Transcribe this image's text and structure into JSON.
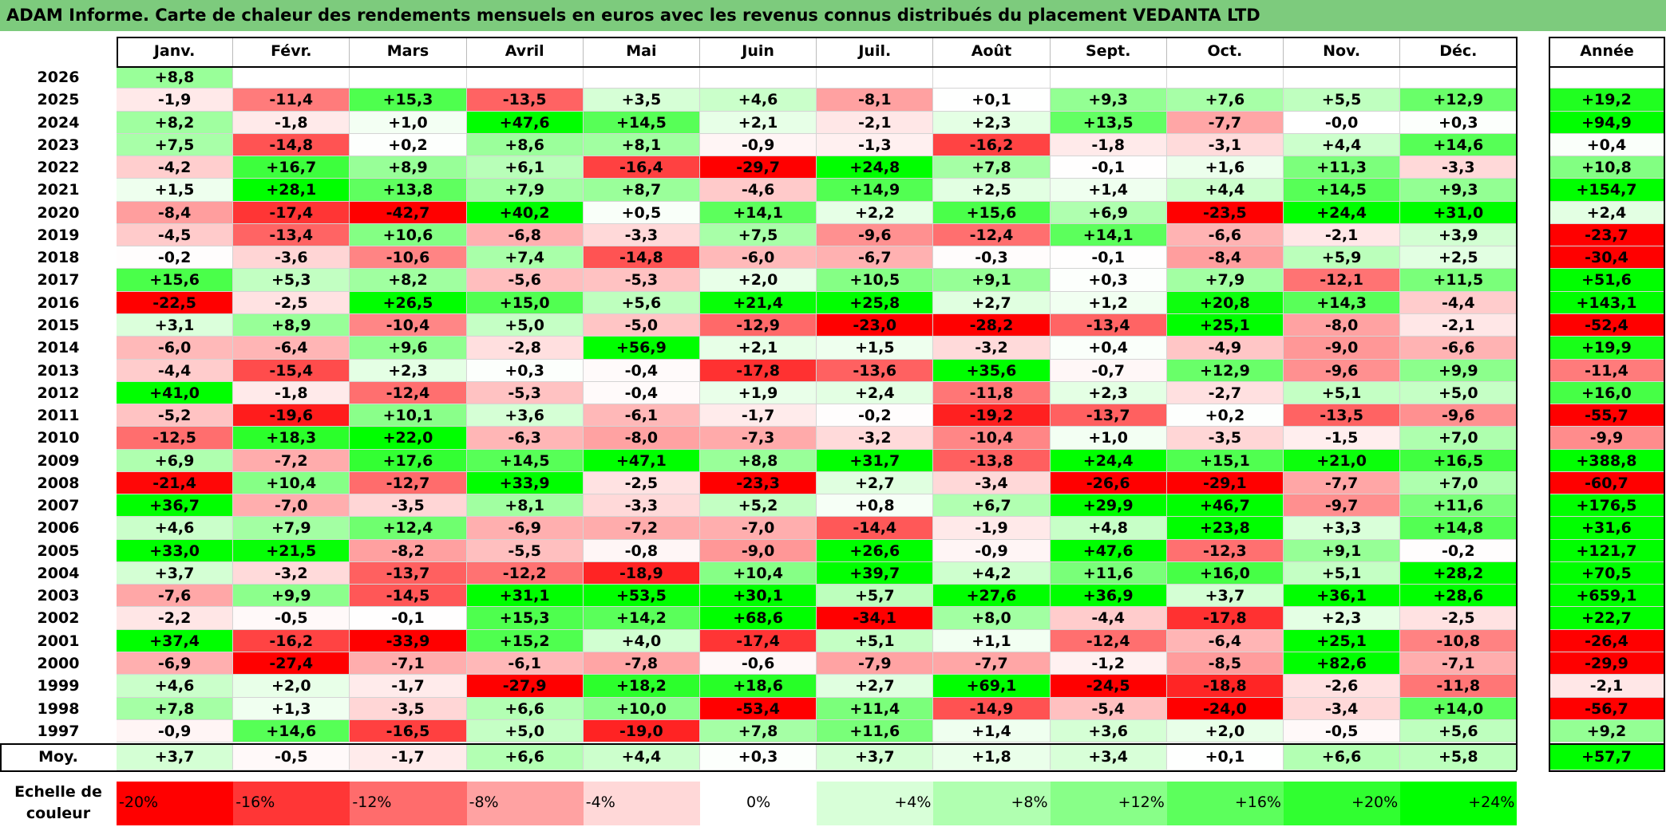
{
  "title": "ADAM Informe. Carte de chaleur des rendements mensuels en euros avec les revenus connus distribués du placement VEDANTA LTD",
  "chart_data": {
    "type": "heatmap",
    "title": "ADAM Informe. Carte de chaleur des rendements mensuels en euros avec les revenus connus distribués du placement VEDANTA LTD",
    "columns": [
      "Janv.",
      "Févr.",
      "Mars",
      "Avril",
      "Mai",
      "Juin",
      "Juil.",
      "Août",
      "Sept.",
      "Oct.",
      "Nov.",
      "Déc."
    ],
    "annual_header": "Année",
    "rows": [
      {
        "year": "2026",
        "values": [
          "+8,8",
          null,
          null,
          null,
          null,
          null,
          null,
          null,
          null,
          null,
          null,
          null
        ],
        "annual": ""
      },
      {
        "year": "2025",
        "values": [
          "-1,9",
          "-11,4",
          "+15,3",
          "-13,5",
          "+3,5",
          "+4,6",
          "-8,1",
          "+0,1",
          "+9,3",
          "+7,6",
          "+5,5",
          "+12,9"
        ],
        "annual": "+19,2"
      },
      {
        "year": "2024",
        "values": [
          "+8,2",
          "-1,8",
          "+1,0",
          "+47,6",
          "+14,5",
          "+2,1",
          "-2,1",
          "+2,3",
          "+13,5",
          "-7,7",
          "-0,0",
          "+0,3"
        ],
        "annual": "+94,9"
      },
      {
        "year": "2023",
        "values": [
          "+7,5",
          "-14,8",
          "+0,2",
          "+8,6",
          "+8,1",
          "-0,9",
          "-1,3",
          "-16,2",
          "-1,8",
          "-3,1",
          "+4,4",
          "+14,6"
        ],
        "annual": "+0,4"
      },
      {
        "year": "2022",
        "values": [
          "-4,2",
          "+16,7",
          "+8,9",
          "+6,1",
          "-16,4",
          "-29,7",
          "+24,8",
          "+7,8",
          "-0,1",
          "+1,6",
          "+11,3",
          "-3,3"
        ],
        "annual": "+10,8"
      },
      {
        "year": "2021",
        "values": [
          "+1,5",
          "+28,1",
          "+13,8",
          "+7,9",
          "+8,7",
          "-4,6",
          "+14,9",
          "+2,5",
          "+1,4",
          "+4,4",
          "+14,5",
          "+9,3"
        ],
        "annual": "+154,7"
      },
      {
        "year": "2020",
        "values": [
          "-8,4",
          "-17,4",
          "-42,7",
          "+40,2",
          "+0,5",
          "+14,1",
          "+2,2",
          "+15,6",
          "+6,9",
          "-23,5",
          "+24,4",
          "+31,0"
        ],
        "annual": "+2,4"
      },
      {
        "year": "2019",
        "values": [
          "-4,5",
          "-13,4",
          "+10,6",
          "-6,8",
          "-3,3",
          "+7,5",
          "-9,6",
          "-12,4",
          "+14,1",
          "-6,6",
          "-2,1",
          "+3,9"
        ],
        "annual": "-23,7"
      },
      {
        "year": "2018",
        "values": [
          "-0,2",
          "-3,6",
          "-10,6",
          "+7,4",
          "-14,8",
          "-6,0",
          "-6,7",
          "-0,3",
          "-0,1",
          "-8,4",
          "+5,9",
          "+2,5"
        ],
        "annual": "-30,4"
      },
      {
        "year": "2017",
        "values": [
          "+15,6",
          "+5,3",
          "+8,2",
          "-5,6",
          "-5,3",
          "+2,0",
          "+10,5",
          "+9,1",
          "+0,3",
          "+7,9",
          "-12,1",
          "+11,5"
        ],
        "annual": "+51,6"
      },
      {
        "year": "2016",
        "values": [
          "-22,5",
          "-2,5",
          "+26,5",
          "+15,0",
          "+5,6",
          "+21,4",
          "+25,8",
          "+2,7",
          "+1,2",
          "+20,8",
          "+14,3",
          "-4,4"
        ],
        "annual": "+143,1"
      },
      {
        "year": "2015",
        "values": [
          "+3,1",
          "+8,9",
          "-10,4",
          "+5,0",
          "-5,0",
          "-12,9",
          "-23,0",
          "-28,2",
          "-13,4",
          "+25,1",
          "-8,0",
          "-2,1"
        ],
        "annual": "-52,4"
      },
      {
        "year": "2014",
        "values": [
          "-6,0",
          "-6,4",
          "+9,6",
          "-2,8",
          "+56,9",
          "+2,1",
          "+1,5",
          "-3,2",
          "+0,4",
          "-4,9",
          "-9,0",
          "-6,6"
        ],
        "annual": "+19,9"
      },
      {
        "year": "2013",
        "values": [
          "-4,4",
          "-15,4",
          "+2,3",
          "+0,3",
          "-0,4",
          "-17,8",
          "-13,6",
          "+35,6",
          "-0,7",
          "+12,9",
          "-9,6",
          "+9,9"
        ],
        "annual": "-11,4"
      },
      {
        "year": "2012",
        "values": [
          "+41,0",
          "-1,8",
          "-12,4",
          "-5,3",
          "-0,4",
          "+1,9",
          "+2,4",
          "-11,8",
          "+2,3",
          "-2,7",
          "+5,1",
          "+5,0"
        ],
        "annual": "+16,0"
      },
      {
        "year": "2011",
        "values": [
          "-5,2",
          "-19,6",
          "+10,1",
          "+3,6",
          "-6,1",
          "-1,7",
          "-0,2",
          "-19,2",
          "-13,7",
          "+0,2",
          "-13,5",
          "-9,6"
        ],
        "annual": "-55,7"
      },
      {
        "year": "2010",
        "values": [
          "-12,5",
          "+18,3",
          "+22,0",
          "-6,3",
          "-8,0",
          "-7,3",
          "-3,2",
          "-10,4",
          "+1,0",
          "-3,5",
          "-1,5",
          "+7,0"
        ],
        "annual": "-9,9"
      },
      {
        "year": "2009",
        "values": [
          "+6,9",
          "-7,2",
          "+17,6",
          "+14,5",
          "+47,1",
          "+8,8",
          "+31,7",
          "-13,8",
          "+24,4",
          "+15,1",
          "+21,0",
          "+16,5"
        ],
        "annual": "+388,8"
      },
      {
        "year": "2008",
        "values": [
          "-21,4",
          "+10,4",
          "-12,7",
          "+33,9",
          "-2,5",
          "-23,3",
          "+2,7",
          "-3,4",
          "-26,6",
          "-29,1",
          "-7,7",
          "+7,0"
        ],
        "annual": "-60,7"
      },
      {
        "year": "2007",
        "values": [
          "+36,7",
          "-7,0",
          "-3,5",
          "+8,1",
          "-3,3",
          "+5,2",
          "+0,8",
          "+6,7",
          "+29,9",
          "+46,7",
          "-9,7",
          "+11,6"
        ],
        "annual": "+176,5"
      },
      {
        "year": "2006",
        "values": [
          "+4,6",
          "+7,9",
          "+12,4",
          "-6,9",
          "-7,2",
          "-7,0",
          "-14,4",
          "-1,9",
          "+4,8",
          "+23,8",
          "+3,3",
          "+14,8"
        ],
        "annual": "+31,6"
      },
      {
        "year": "2005",
        "values": [
          "+33,0",
          "+21,5",
          "-8,2",
          "-5,5",
          "-0,8",
          "-9,0",
          "+26,6",
          "-0,9",
          "+47,6",
          "-12,3",
          "+9,1",
          "-0,2"
        ],
        "annual": "+121,7"
      },
      {
        "year": "2004",
        "values": [
          "+3,7",
          "-3,2",
          "-13,7",
          "-12,2",
          "-18,9",
          "+10,4",
          "+39,7",
          "+4,2",
          "+11,6",
          "+16,0",
          "+5,1",
          "+28,2"
        ],
        "annual": "+70,5"
      },
      {
        "year": "2003",
        "values": [
          "-7,6",
          "+9,9",
          "-14,5",
          "+31,1",
          "+53,5",
          "+30,1",
          "+5,7",
          "+27,6",
          "+36,9",
          "+3,7",
          "+36,1",
          "+28,6"
        ],
        "annual": "+659,1"
      },
      {
        "year": "2002",
        "values": [
          "-2,2",
          "-0,5",
          "-0,1",
          "+15,3",
          "+14,2",
          "+68,6",
          "-34,1",
          "+8,0",
          "-4,4",
          "-17,8",
          "+2,3",
          "-2,5"
        ],
        "annual": "+22,7"
      },
      {
        "year": "2001",
        "values": [
          "+37,4",
          "-16,2",
          "-33,9",
          "+15,2",
          "+4,0",
          "-17,4",
          "+5,1",
          "+1,1",
          "-12,4",
          "-6,4",
          "+25,1",
          "-10,8"
        ],
        "annual": "-26,4"
      },
      {
        "year": "2000",
        "values": [
          "-6,9",
          "-27,4",
          "-7,1",
          "-6,1",
          "-7,8",
          "-0,6",
          "-7,9",
          "-7,7",
          "-1,2",
          "-8,5",
          "+82,6",
          "-7,1"
        ],
        "annual": "-29,9"
      },
      {
        "year": "1999",
        "values": [
          "+4,6",
          "+2,0",
          "-1,7",
          "-27,9",
          "+18,2",
          "+18,6",
          "+2,7",
          "+69,1",
          "-24,5",
          "-18,8",
          "-2,6",
          "-11,8"
        ],
        "annual": "-2,1"
      },
      {
        "year": "1998",
        "values": [
          "+7,8",
          "+1,3",
          "-3,5",
          "+6,6",
          "+10,0",
          "-53,4",
          "+11,4",
          "-14,9",
          "-5,4",
          "-24,0",
          "-3,4",
          "+14,0"
        ],
        "annual": "-56,7"
      },
      {
        "year": "1997",
        "values": [
          "-0,9",
          "+14,6",
          "-16,5",
          "+5,0",
          "-19,0",
          "+7,8",
          "+11,6",
          "+1,4",
          "+3,6",
          "+2,0",
          "-0,5",
          "+5,6"
        ],
        "annual": "+9,2"
      }
    ],
    "average": {
      "label": "Moy.",
      "values": [
        "+3,7",
        "-0,5",
        "-1,7",
        "+6,6",
        "+4,4",
        "+0,3",
        "+3,7",
        "+1,8",
        "+3,4",
        "+0,1",
        "+6,6",
        "+5,8"
      ],
      "annual": "+57,7"
    },
    "scale": {
      "label": "Echelle de couleur",
      "steps": [
        {
          "text": "-20%",
          "color": "#ff0000"
        },
        {
          "text": "-16%",
          "color": "#ff3636"
        },
        {
          "text": "-12%",
          "color": "#ff6c6c"
        },
        {
          "text": "-8%",
          "color": "#ffa2a2"
        },
        {
          "text": "-4%",
          "color": "#ffd8d8"
        },
        {
          "text": "0%",
          "color": "#ffffff"
        },
        {
          "text": "+4%",
          "color": "#d8ffd8"
        },
        {
          "text": "+8%",
          "color": "#b0ffb0"
        },
        {
          "text": "+12%",
          "color": "#88ff88"
        },
        {
          "text": "+16%",
          "color": "#5cff5c"
        },
        {
          "text": "+20%",
          "color": "#30ff30"
        },
        {
          "text": "+24%",
          "color": "#00ff00"
        }
      ]
    },
    "colors": {
      "negative": "#ff0000",
      "zero": "#ffffff",
      "positive": "#00ff00",
      "title_bg": "#7dcb7d"
    }
  }
}
